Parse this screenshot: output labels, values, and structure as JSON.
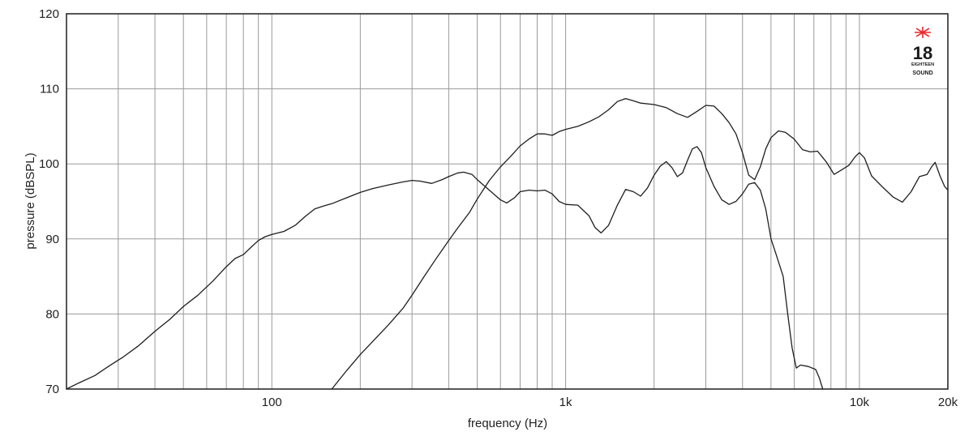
{
  "chart_data": {
    "type": "line",
    "xlabel": "frequency (Hz)",
    "ylabel": "pressure (dBSPL)",
    "x_scale": "log",
    "xlim": [
      20,
      20000
    ],
    "ylim": [
      70,
      120
    ],
    "grid": true,
    "x_ticks": [
      {
        "value": 100,
        "label": "100"
      },
      {
        "value": 1000,
        "label": "1k"
      },
      {
        "value": 10000,
        "label": "10k"
      },
      {
        "value": 20000,
        "label": "20k"
      }
    ],
    "y_ticks": [
      {
        "value": 70,
        "label": "70"
      },
      {
        "value": 80,
        "label": "80"
      },
      {
        "value": 90,
        "label": "90"
      },
      {
        "value": 100,
        "label": "100"
      },
      {
        "value": 110,
        "label": "110"
      },
      {
        "value": 120,
        "label": "120"
      }
    ],
    "series": [
      {
        "points": [
          [
            20,
            70
          ],
          [
            22,
            70.8
          ],
          [
            25,
            71.8
          ],
          [
            28,
            73.1
          ],
          [
            31,
            74.2
          ],
          [
            35,
            75.7
          ],
          [
            40,
            77.7
          ],
          [
            45,
            79.3
          ],
          [
            50,
            81.0
          ],
          [
            56,
            82.5
          ],
          [
            63,
            84.4
          ],
          [
            70,
            86.3
          ],
          [
            75,
            87.4
          ],
          [
            80,
            87.9
          ],
          [
            85,
            88.9
          ],
          [
            90,
            89.8
          ],
          [
            95,
            90.3
          ],
          [
            100,
            90.6
          ],
          [
            110,
            91.0
          ],
          [
            120,
            91.8
          ],
          [
            130,
            93.0
          ],
          [
            140,
            94.0
          ],
          [
            150,
            94.4
          ],
          [
            160,
            94.7
          ],
          [
            180,
            95.5
          ],
          [
            200,
            96.2
          ],
          [
            220,
            96.7
          ],
          [
            250,
            97.2
          ],
          [
            280,
            97.6
          ],
          [
            300,
            97.8
          ],
          [
            320,
            97.7
          ],
          [
            350,
            97.4
          ],
          [
            380,
            97.9
          ],
          [
            400,
            98.3
          ],
          [
            430,
            98.8
          ],
          [
            450,
            98.9
          ],
          [
            480,
            98.6
          ],
          [
            500,
            97.9
          ],
          [
            550,
            96.5
          ],
          [
            600,
            95.2
          ],
          [
            630,
            94.8
          ],
          [
            670,
            95.5
          ],
          [
            700,
            96.3
          ],
          [
            750,
            96.5
          ],
          [
            800,
            96.4
          ],
          [
            850,
            96.5
          ],
          [
            900,
            96.0
          ],
          [
            950,
            95.0
          ],
          [
            1000,
            94.6
          ],
          [
            1100,
            94.5
          ],
          [
            1200,
            93.1
          ],
          [
            1260,
            91.5
          ],
          [
            1320,
            90.8
          ],
          [
            1400,
            91.8
          ],
          [
            1500,
            94.5
          ],
          [
            1600,
            96.6
          ],
          [
            1700,
            96.3
          ],
          [
            1800,
            95.7
          ],
          [
            1900,
            96.8
          ],
          [
            2000,
            98.5
          ],
          [
            2100,
            99.7
          ],
          [
            2200,
            100.3
          ],
          [
            2300,
            99.5
          ],
          [
            2400,
            98.3
          ],
          [
            2500,
            98.8
          ],
          [
            2600,
            100.5
          ],
          [
            2700,
            102.0
          ],
          [
            2800,
            102.3
          ],
          [
            2900,
            101.5
          ],
          [
            3000,
            99.5
          ],
          [
            3200,
            97.0
          ],
          [
            3400,
            95.2
          ],
          [
            3600,
            94.6
          ],
          [
            3800,
            95.0
          ],
          [
            4000,
            96.0
          ],
          [
            4200,
            97.3
          ],
          [
            4400,
            97.5
          ],
          [
            4600,
            96.5
          ],
          [
            4800,
            94.0
          ],
          [
            5000,
            90.0
          ],
          [
            5200,
            88.0
          ],
          [
            5500,
            85.0
          ],
          [
            5700,
            80.0
          ],
          [
            5900,
            75.5
          ],
          [
            6100,
            72.8
          ],
          [
            6300,
            73.2
          ],
          [
            6700,
            73.0
          ],
          [
            7100,
            72.6
          ],
          [
            7300,
            71.5
          ],
          [
            7500,
            70.0
          ]
        ]
      },
      {
        "points": [
          [
            160,
            70
          ],
          [
            180,
            72.5
          ],
          [
            200,
            74.6
          ],
          [
            220,
            76.3
          ],
          [
            250,
            78.6
          ],
          [
            280,
            80.8
          ],
          [
            300,
            82.5
          ],
          [
            330,
            85.0
          ],
          [
            360,
            87.2
          ],
          [
            400,
            89.8
          ],
          [
            430,
            91.5
          ],
          [
            470,
            93.5
          ],
          [
            500,
            95.3
          ],
          [
            550,
            97.8
          ],
          [
            600,
            99.6
          ],
          [
            650,
            101.0
          ],
          [
            700,
            102.4
          ],
          [
            750,
            103.3
          ],
          [
            800,
            104.0
          ],
          [
            850,
            104.0
          ],
          [
            900,
            103.8
          ],
          [
            950,
            104.3
          ],
          [
            1000,
            104.6
          ],
          [
            1100,
            105.0
          ],
          [
            1200,
            105.6
          ],
          [
            1300,
            106.3
          ],
          [
            1400,
            107.2
          ],
          [
            1500,
            108.3
          ],
          [
            1600,
            108.7
          ],
          [
            1700,
            108.4
          ],
          [
            1800,
            108.1
          ],
          [
            2000,
            107.9
          ],
          [
            2200,
            107.5
          ],
          [
            2400,
            106.7
          ],
          [
            2600,
            106.2
          ],
          [
            2800,
            107.0
          ],
          [
            3000,
            107.8
          ],
          [
            3200,
            107.7
          ],
          [
            3400,
            106.7
          ],
          [
            3600,
            105.5
          ],
          [
            3800,
            104.0
          ],
          [
            4000,
            101.5
          ],
          [
            4200,
            98.5
          ],
          [
            4400,
            97.9
          ],
          [
            4600,
            99.6
          ],
          [
            4800,
            102.0
          ],
          [
            5000,
            103.5
          ],
          [
            5300,
            104.4
          ],
          [
            5600,
            104.2
          ],
          [
            6000,
            103.3
          ],
          [
            6400,
            101.9
          ],
          [
            6800,
            101.6
          ],
          [
            7200,
            101.7
          ],
          [
            7700,
            100.3
          ],
          [
            8200,
            98.6
          ],
          [
            8700,
            99.2
          ],
          [
            9200,
            99.8
          ],
          [
            9700,
            101.0
          ],
          [
            10000,
            101.5
          ],
          [
            10400,
            100.8
          ],
          [
            11000,
            98.4
          ],
          [
            12000,
            96.9
          ],
          [
            13000,
            95.6
          ],
          [
            14000,
            94.9
          ],
          [
            15000,
            96.3
          ],
          [
            16000,
            98.3
          ],
          [
            17000,
            98.6
          ],
          [
            17600,
            99.6
          ],
          [
            18100,
            100.2
          ],
          [
            18800,
            98.4
          ],
          [
            19500,
            97.0
          ],
          [
            20000,
            96.5
          ]
        ]
      }
    ]
  },
  "logo": {
    "number": "18",
    "sub": "EIGHTEEN",
    "word": "SOUND",
    "accent_color": "#e8262b"
  }
}
